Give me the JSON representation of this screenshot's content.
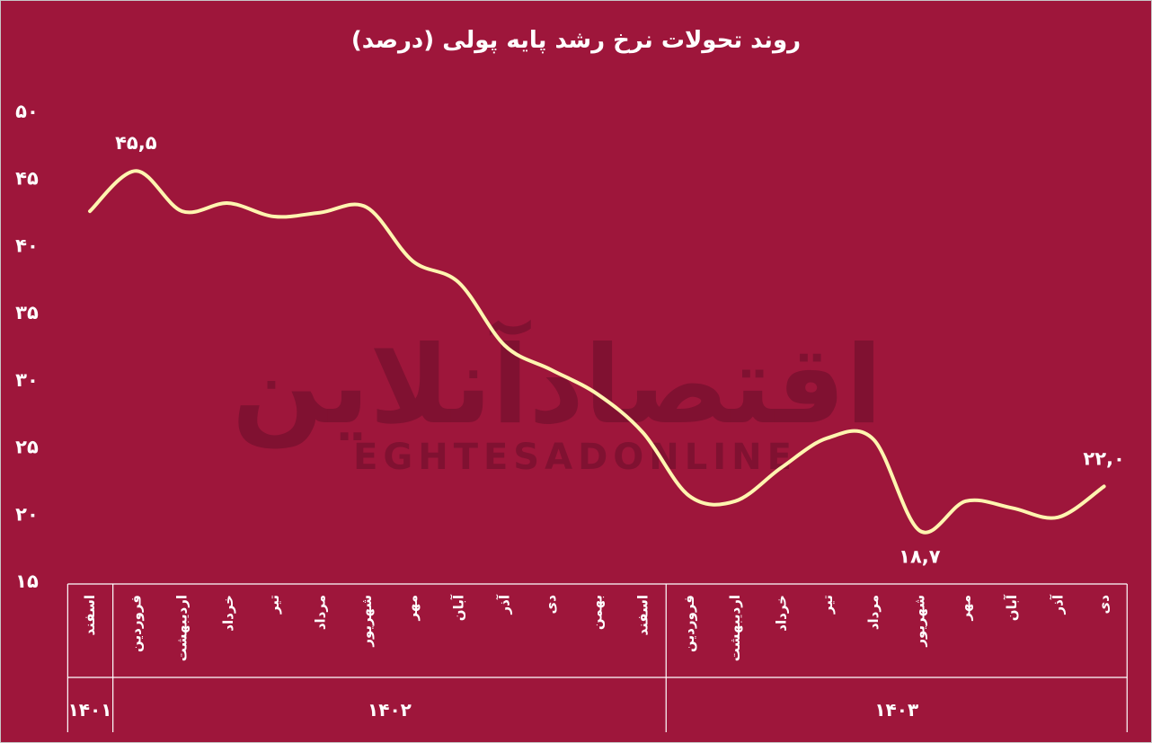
{
  "chart_data": {
    "type": "line",
    "title": "روند تحولات نرخ رشد پایه پولی (درصد)",
    "xlabel": "",
    "ylabel": "",
    "ylim": [
      15,
      50
    ],
    "yticks": [
      "۱۵",
      "۲۰",
      "۲۵",
      "۳۰",
      "۳۵",
      "۴۰",
      "۴۵",
      "۵۰"
    ],
    "yticks_values": [
      15,
      20,
      25,
      30,
      35,
      40,
      45,
      50
    ],
    "categories": [
      "اسفند",
      "فروردین",
      "اردیبهشت",
      "خرداد",
      "تیر",
      "مرداد",
      "شهریور",
      "مهر",
      "آبان",
      "آذر",
      "دی",
      "بهمن",
      "اسفند",
      "فروردین",
      "اردیبهشت",
      "خرداد",
      "تیر",
      "مرداد",
      "شهریور",
      "مهر",
      "آبان",
      "آذر",
      "دی"
    ],
    "years": [
      {
        "label": "۱۴۰۱",
        "start": 0,
        "end": 0
      },
      {
        "label": "۱۴۰۲",
        "start": 1,
        "end": 12
      },
      {
        "label": "۱۴۰۳",
        "start": 13,
        "end": 22
      }
    ],
    "series": [
      {
        "values": [
          42.5,
          45.5,
          42.5,
          43.1,
          42.1,
          42.4,
          42.8,
          38.8,
          37.2,
          32.5,
          30.7,
          28.9,
          26.0,
          21.3,
          20.9,
          23.4,
          25.6,
          25.5,
          18.7,
          20.9,
          20.4,
          19.7,
          22.0
        ]
      }
    ],
    "data_labels": [
      {
        "index": 1,
        "text": "۴۵,۵"
      },
      {
        "index": 18,
        "text": "۱۸,۷"
      },
      {
        "index": 22,
        "text": "۲۲,۰"
      }
    ],
    "line_color": "#fff5b0",
    "background": "#9e163b",
    "grid": false
  },
  "watermark": {
    "arabic": "اقتصادآنلاین",
    "latin": "EGHTESADONLINE"
  }
}
